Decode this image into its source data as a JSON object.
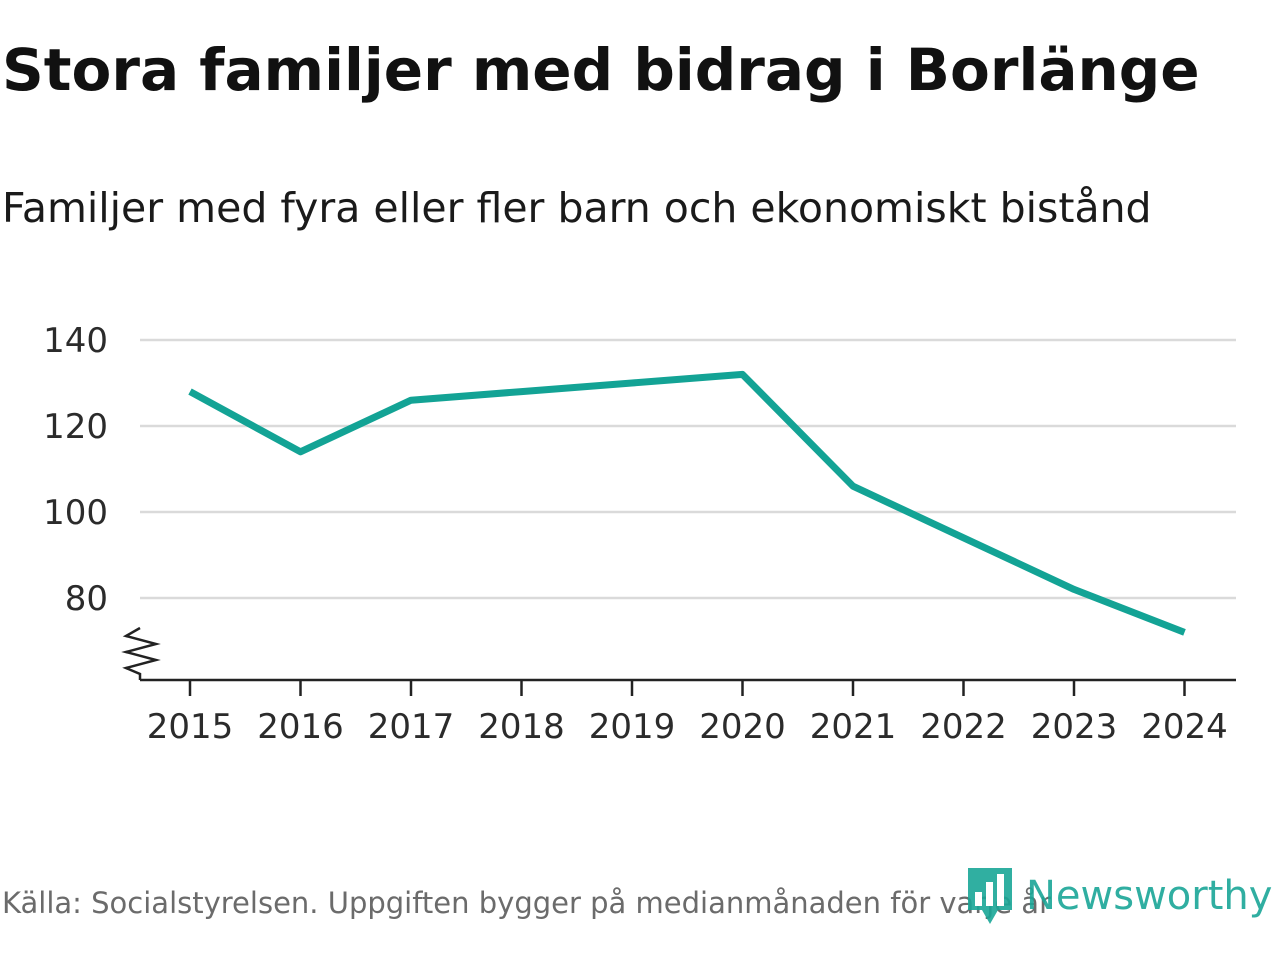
{
  "chart_data": {
    "type": "line",
    "title": "Stora familjer med bidrag i Borlänge",
    "subtitle": "Familjer med fyra eller fler barn och ekonomiskt bistånd",
    "categories": [
      "2015",
      "2016",
      "2017",
      "2018",
      "2019",
      "2020",
      "2021",
      "2022",
      "2023",
      "2024"
    ],
    "series": [
      {
        "name": "Familjer med fyra eller fler barn och ekonomiskt bistånd",
        "values": [
          128,
          114,
          126,
          128,
          130,
          132,
          106,
          94,
          82,
          72
        ]
      }
    ],
    "yticks": [
      "80",
      "100",
      "120",
      "140"
    ],
    "ylim": [
      61,
      140
    ],
    "xlabel": "",
    "ylabel": "",
    "grid": true,
    "axis_break": true,
    "line_color": "#13a395",
    "grid_color": "#dadada"
  },
  "footer": {
    "source": "Källa: Socialstyrelsen. Uppgiften bygger på medianmånaden för varje år",
    "brand": "Newsworthy",
    "brand_icon": "bar-chart-pin-icon",
    "brand_color": "#1aa697"
  }
}
